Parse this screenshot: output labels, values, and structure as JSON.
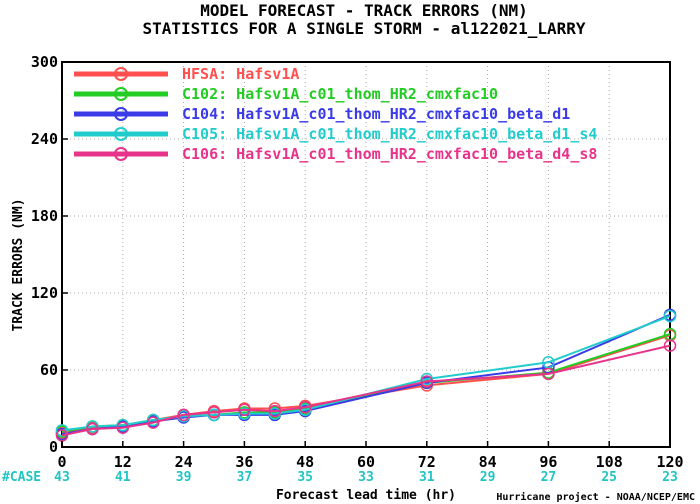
{
  "titles": {
    "line1": "MODEL FORECAST - TRACK ERRORS (NM)",
    "line2": "STATISTICS FOR A SINGLE STORM - al122021_LARRY"
  },
  "credit": "Hurricane project - NOAA/NCEP/EMC",
  "case_label": "#CASE",
  "chart_data": {
    "type": "line",
    "title": "MODEL FORECAST - TRACK ERRORS (NM)",
    "subtitle": "STATISTICS FOR A SINGLE STORM - al122021_LARRY",
    "xlabel": "Forecast lead time (hr)",
    "ylabel": "TRACK ERRORS (NM)",
    "xlim": [
      0,
      120
    ],
    "ylim": [
      0,
      300
    ],
    "xticks": [
      0,
      12,
      24,
      36,
      48,
      60,
      72,
      84,
      96,
      108,
      120
    ],
    "yticks": [
      0,
      60,
      120,
      180,
      240,
      300
    ],
    "ytick_labels": [
      "0",
      "60",
      "120",
      "180",
      "240",
      "300"
    ],
    "grid": true,
    "legend": "top-left",
    "x": [
      0,
      6,
      12,
      18,
      24,
      30,
      36,
      42,
      48,
      72,
      96,
      120
    ],
    "cases": [
      {
        "x": 0,
        "label": "43"
      },
      {
        "x": 12,
        "label": "41"
      },
      {
        "x": 24,
        "label": "39"
      },
      {
        "x": 36,
        "label": "37"
      },
      {
        "x": 48,
        "label": "35"
      },
      {
        "x": 60,
        "label": "33"
      },
      {
        "x": 72,
        "label": "31"
      },
      {
        "x": 84,
        "label": "29"
      },
      {
        "x": 96,
        "label": "27"
      },
      {
        "x": 108,
        "label": "25"
      },
      {
        "x": 120,
        "label": "23"
      }
    ],
    "series": [
      {
        "code": "HFSA",
        "name": "Hafsv1A",
        "color": "#ff4f4f",
        "values": [
          11,
          15,
          16,
          21,
          25,
          28,
          30,
          30,
          32,
          48,
          57,
          87
        ]
      },
      {
        "code": "C102",
        "name": "Hafsv1A_c01_thom_HR2_cmxfac10",
        "color": "#22cc22",
        "values": [
          12,
          16,
          17,
          21,
          24,
          25,
          27,
          27,
          30,
          50,
          58,
          88
        ]
      },
      {
        "code": "C104",
        "name": "Hafsv1A_c01_thom_HR2_cmxfac10_beta_d1",
        "color": "#3a3ae8",
        "values": [
          10,
          14,
          16,
          20,
          23,
          25,
          25,
          25,
          28,
          50,
          62,
          103
        ]
      },
      {
        "code": "C105",
        "name": "Hafsv1A_c01_thom_HR2_cmxfac10_beta_d1_s4",
        "color": "#22cccc",
        "values": [
          13,
          16,
          17,
          21,
          24,
          25,
          26,
          26,
          29,
          53,
          66,
          102
        ]
      },
      {
        "code": "C106",
        "name": "Hafsv1A_c01_thom_HR2_cmxfac10_beta_d4_s8",
        "color": "#e8338a",
        "values": [
          9,
          14,
          15,
          19,
          25,
          27,
          29,
          28,
          31,
          51,
          57,
          79
        ]
      }
    ]
  }
}
